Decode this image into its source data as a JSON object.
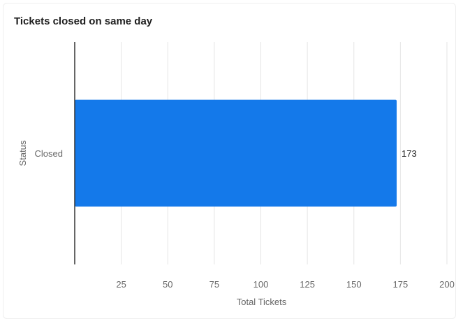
{
  "card": {
    "title": "Tickets closed on same day"
  },
  "chart_data": {
    "type": "bar",
    "orientation": "horizontal",
    "categories": [
      "Closed"
    ],
    "series": [
      {
        "values": [
          173
        ]
      }
    ],
    "data_labels": [
      "173"
    ],
    "xlabel": "Total Tickets",
    "ylabel": "Status",
    "xlim": [
      0,
      200
    ],
    "x_ticks": [
      25,
      50,
      75,
      100,
      125,
      150,
      175,
      200
    ],
    "grid": true,
    "legend": "none",
    "colors": {
      "bar": "#1479EA",
      "grid": "#e5e5e5",
      "axis": "#333333"
    }
  }
}
